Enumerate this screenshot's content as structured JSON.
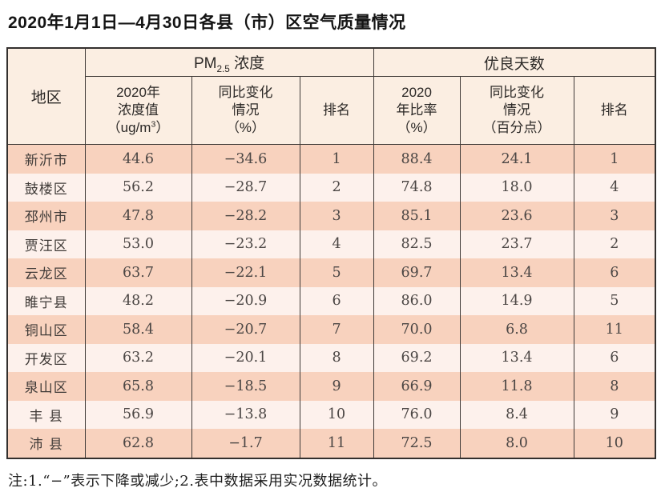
{
  "title": "2020年1月1日—4月30日各县（市）区空气质量情况",
  "footnote": "注:1.“−”表示下降或减少;2.表中数据采用实况数据统计。",
  "table": {
    "region_header": "地区",
    "pm_group": {
      "prefix": "PM",
      "sub": "2.5",
      "suffix": " 浓度"
    },
    "good_group": "优良天数",
    "subcols": {
      "pm_value": {
        "l1": "2020年",
        "l2": "浓度值",
        "unit_pre": "（ug/m",
        "unit_sup": "3",
        "unit_post": "）"
      },
      "pm_change": {
        "l1": "同比变化",
        "l2": "情况",
        "l3": "（%）"
      },
      "pm_rank": {
        "l1": "排名"
      },
      "good_ratio": {
        "l1": "2020",
        "l2": "年比率",
        "l3": "（%）"
      },
      "good_change": {
        "l1": "同比变化",
        "l2": "情况",
        "l3": "（百分点）"
      },
      "good_rank": {
        "l1": "排名"
      }
    },
    "rows": [
      {
        "region": "新沂市",
        "pm_value": "44.6",
        "pm_change": "−34.6",
        "pm_rank": "1",
        "good_ratio": "88.4",
        "good_change": "24.1",
        "good_rank": "1"
      },
      {
        "region": "鼓楼区",
        "pm_value": "56.2",
        "pm_change": "−28.7",
        "pm_rank": "2",
        "good_ratio": "74.8",
        "good_change": "18.0",
        "good_rank": "4"
      },
      {
        "region": "邳州市",
        "pm_value": "47.8",
        "pm_change": "−28.2",
        "pm_rank": "3",
        "good_ratio": "85.1",
        "good_change": "23.6",
        "good_rank": "3"
      },
      {
        "region": "贾汪区",
        "pm_value": "53.0",
        "pm_change": "−23.2",
        "pm_rank": "4",
        "good_ratio": "82.5",
        "good_change": "23.7",
        "good_rank": "2"
      },
      {
        "region": "云龙区",
        "pm_value": "63.7",
        "pm_change": "−22.1",
        "pm_rank": "5",
        "good_ratio": "69.7",
        "good_change": "13.4",
        "good_rank": "6"
      },
      {
        "region": "睢宁县",
        "pm_value": "48.2",
        "pm_change": "−20.9",
        "pm_rank": "6",
        "good_ratio": "86.0",
        "good_change": "14.9",
        "good_rank": "5"
      },
      {
        "region": "铜山区",
        "pm_value": "58.4",
        "pm_change": "−20.7",
        "pm_rank": "7",
        "good_ratio": "70.0",
        "good_change": "6.8",
        "good_rank": "11"
      },
      {
        "region": "开发区",
        "pm_value": "63.2",
        "pm_change": "−20.1",
        "pm_rank": "8",
        "good_ratio": "69.2",
        "good_change": "13.4",
        "good_rank": "6"
      },
      {
        "region": "泉山区",
        "pm_value": "65.8",
        "pm_change": "−18.5",
        "pm_rank": "9",
        "good_ratio": "66.9",
        "good_change": "11.8",
        "good_rank": "8"
      },
      {
        "region": "丰 县",
        "pm_value": "56.9",
        "pm_change": "−13.8",
        "pm_rank": "10",
        "good_ratio": "76.0",
        "good_change": "8.4",
        "good_rank": "9"
      },
      {
        "region": "沛 县",
        "pm_value": "62.8",
        "pm_change": "−1.7",
        "pm_rank": "11",
        "good_ratio": "72.5",
        "good_change": "8.0",
        "good_rank": "10"
      }
    ]
  },
  "colors": {
    "stripe_dark": "#f8d2be",
    "stripe_light": "#fdf1ec",
    "header_bg": "#fbeee2",
    "border": "#403b38"
  }
}
